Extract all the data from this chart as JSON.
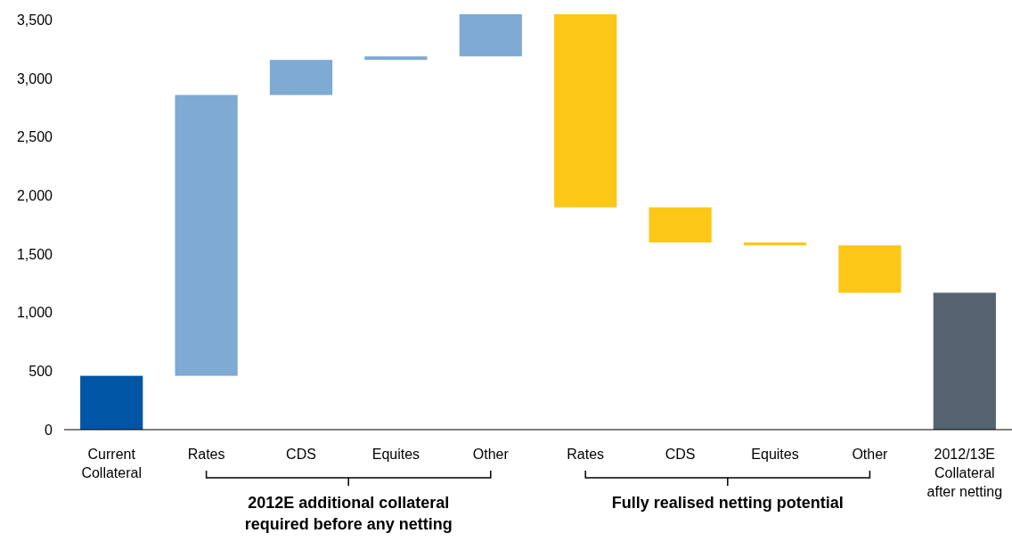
{
  "chart_data": {
    "type": "bar",
    "categories": [
      "Current Collateral",
      "Rates",
      "CDS",
      "Equites",
      "Other",
      "Rates",
      "CDS",
      "Equites",
      "Other",
      "2012/13E Collateral after netting"
    ],
    "values": [
      460,
      2400,
      300,
      30,
      360,
      -1650,
      -300,
      -25,
      -405,
      1170
    ],
    "base": [
      0,
      460,
      2860,
      3160,
      3190,
      3550,
      1900,
      1600,
      1575,
      0
    ],
    "colors": [
      "#0055a5",
      "#7eaad3",
      "#7eaad3",
      "#7eaad3",
      "#7eaad3",
      "#fcc716",
      "#fcc716",
      "#fcc716",
      "#fcc716",
      "#556270"
    ],
    "ylim": [
      0,
      3550
    ],
    "yticks": [
      0,
      {
        "value": 500,
        "label": "500"
      },
      {
        "value": 1000,
        "label": "1,000"
      },
      {
        "value": 1500,
        "label": "1,500"
      },
      {
        "value": 2000,
        "label": "2,000"
      },
      {
        "value": 2500,
        "label": "2,500"
      },
      {
        "value": 3000,
        "label": "3,000"
      },
      {
        "value": 3500,
        "label": "3,500"
      }
    ],
    "grid": false,
    "annotations": [
      "2012E additional collateral required before any netting",
      "Fully realised netting potential"
    ]
  }
}
